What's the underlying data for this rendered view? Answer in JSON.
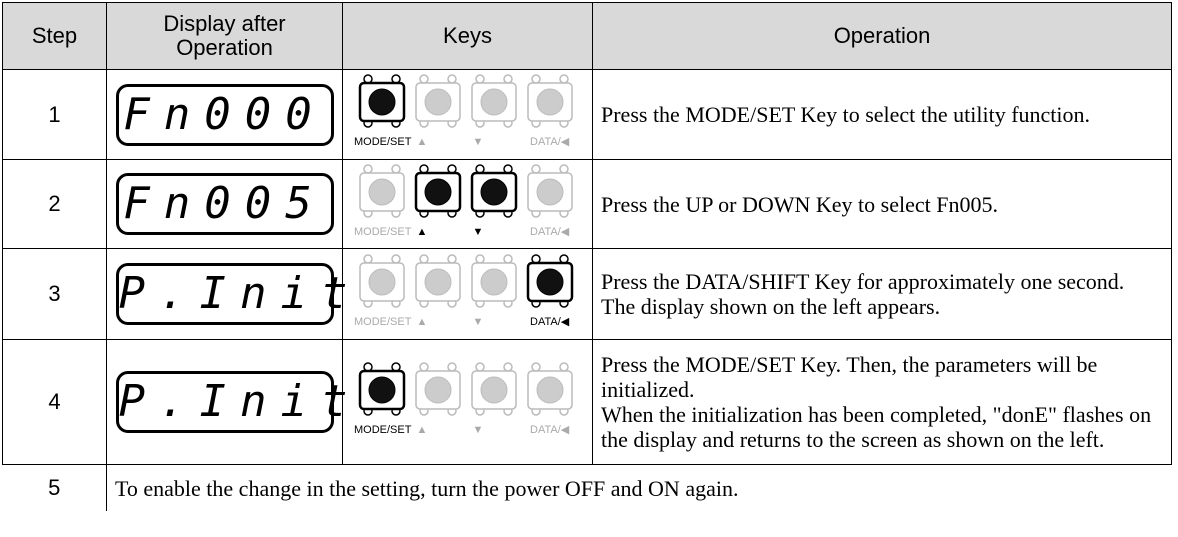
{
  "header": {
    "step": "Step",
    "display": "Display after Operation",
    "keys": "Keys",
    "operation": "Operation"
  },
  "key_labels": [
    "MODE/SET",
    "▲",
    "▼",
    "DATA/◀"
  ],
  "rows": [
    {
      "step": "1",
      "display": "Fn000",
      "pressed": [
        true,
        false,
        false,
        false
      ],
      "operation": [
        "Press the MODE/SET Key to select the utility function."
      ]
    },
    {
      "step": "2",
      "display": "Fn005",
      "pressed": [
        false,
        true,
        true,
        false
      ],
      "operation": [
        "Press the UP or DOWN Key to select Fn005."
      ]
    },
    {
      "step": "3",
      "display": "P.Init",
      "pressed": [
        false,
        false,
        false,
        true
      ],
      "operation": [
        "Press the DATA/SHIFT Key for approximately one second. The display shown on the left appears."
      ]
    },
    {
      "step": "4",
      "display": "P.Init",
      "pressed": [
        true,
        false,
        false,
        false
      ],
      "operation": [
        "Press the MODE/SET Key. Then, the parameters will be initialized.",
        "When the initialization has been completed, \"donE\" flashes on the display and returns to the screen as shown on the left."
      ]
    }
  ],
  "final_row": {
    "step": "5",
    "operation": "To enable the change in the setting, turn the power OFF and ON again."
  }
}
